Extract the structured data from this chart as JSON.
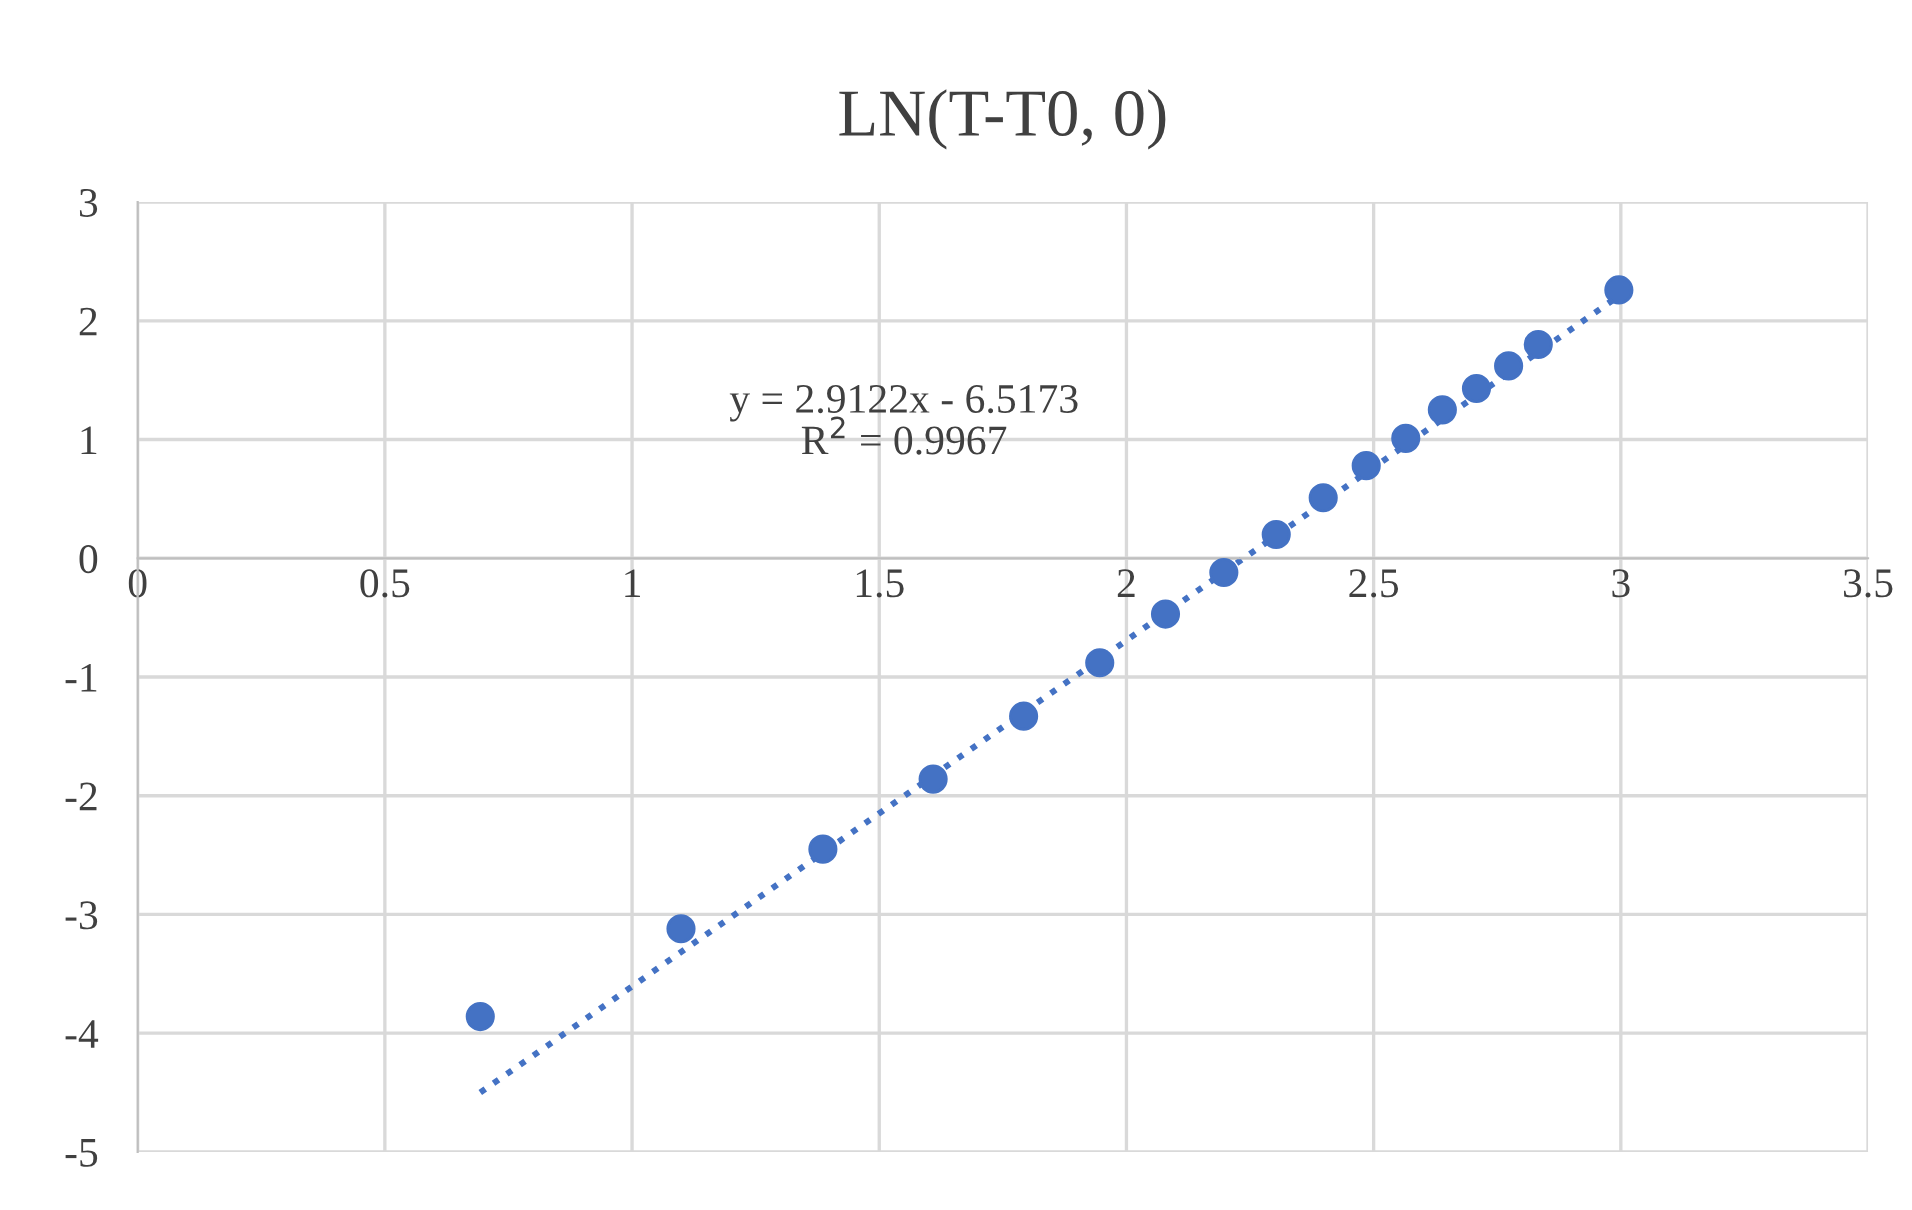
{
  "chart_data": {
    "type": "scatter",
    "title": "LN(T-T0, 0)",
    "x": [
      0.693,
      1.099,
      1.386,
      1.609,
      1.792,
      1.946,
      2.079,
      2.197,
      2.303,
      2.398,
      2.485,
      2.565,
      2.639,
      2.708,
      2.773,
      2.833,
      2.996
    ],
    "series": [
      {
        "color": "#4472c4",
        "marker": "circle",
        "values": [
          -3.86,
          -3.12,
          -2.45,
          -1.86,
          -1.33,
          -0.88,
          -0.47,
          -0.12,
          0.2,
          0.51,
          0.78,
          1.01,
          1.25,
          1.43,
          1.62,
          1.8,
          2.26
        ]
      },
      {
        "type": "line",
        "color": "#4472c4",
        "line_style": "dotted",
        "x": [
          0.693,
          2.996
        ],
        "values": [
          -4.5,
          2.21
        ]
      }
    ],
    "annotations": [
      "y = 2.9122x - 6.5173\nR$^{2}$ = 0.9967"
    ],
    "xlim": [
      0,
      3.5
    ],
    "ylim": [
      -5,
      3
    ],
    "xticks": [
      0,
      0.5,
      1,
      1.5,
      2,
      2.5,
      3,
      3.5
    ],
    "yticks": [
      -5,
      -4,
      -3,
      -2,
      -1,
      0,
      1,
      2,
      3
    ],
    "grid": true,
    "legend": false
  }
}
